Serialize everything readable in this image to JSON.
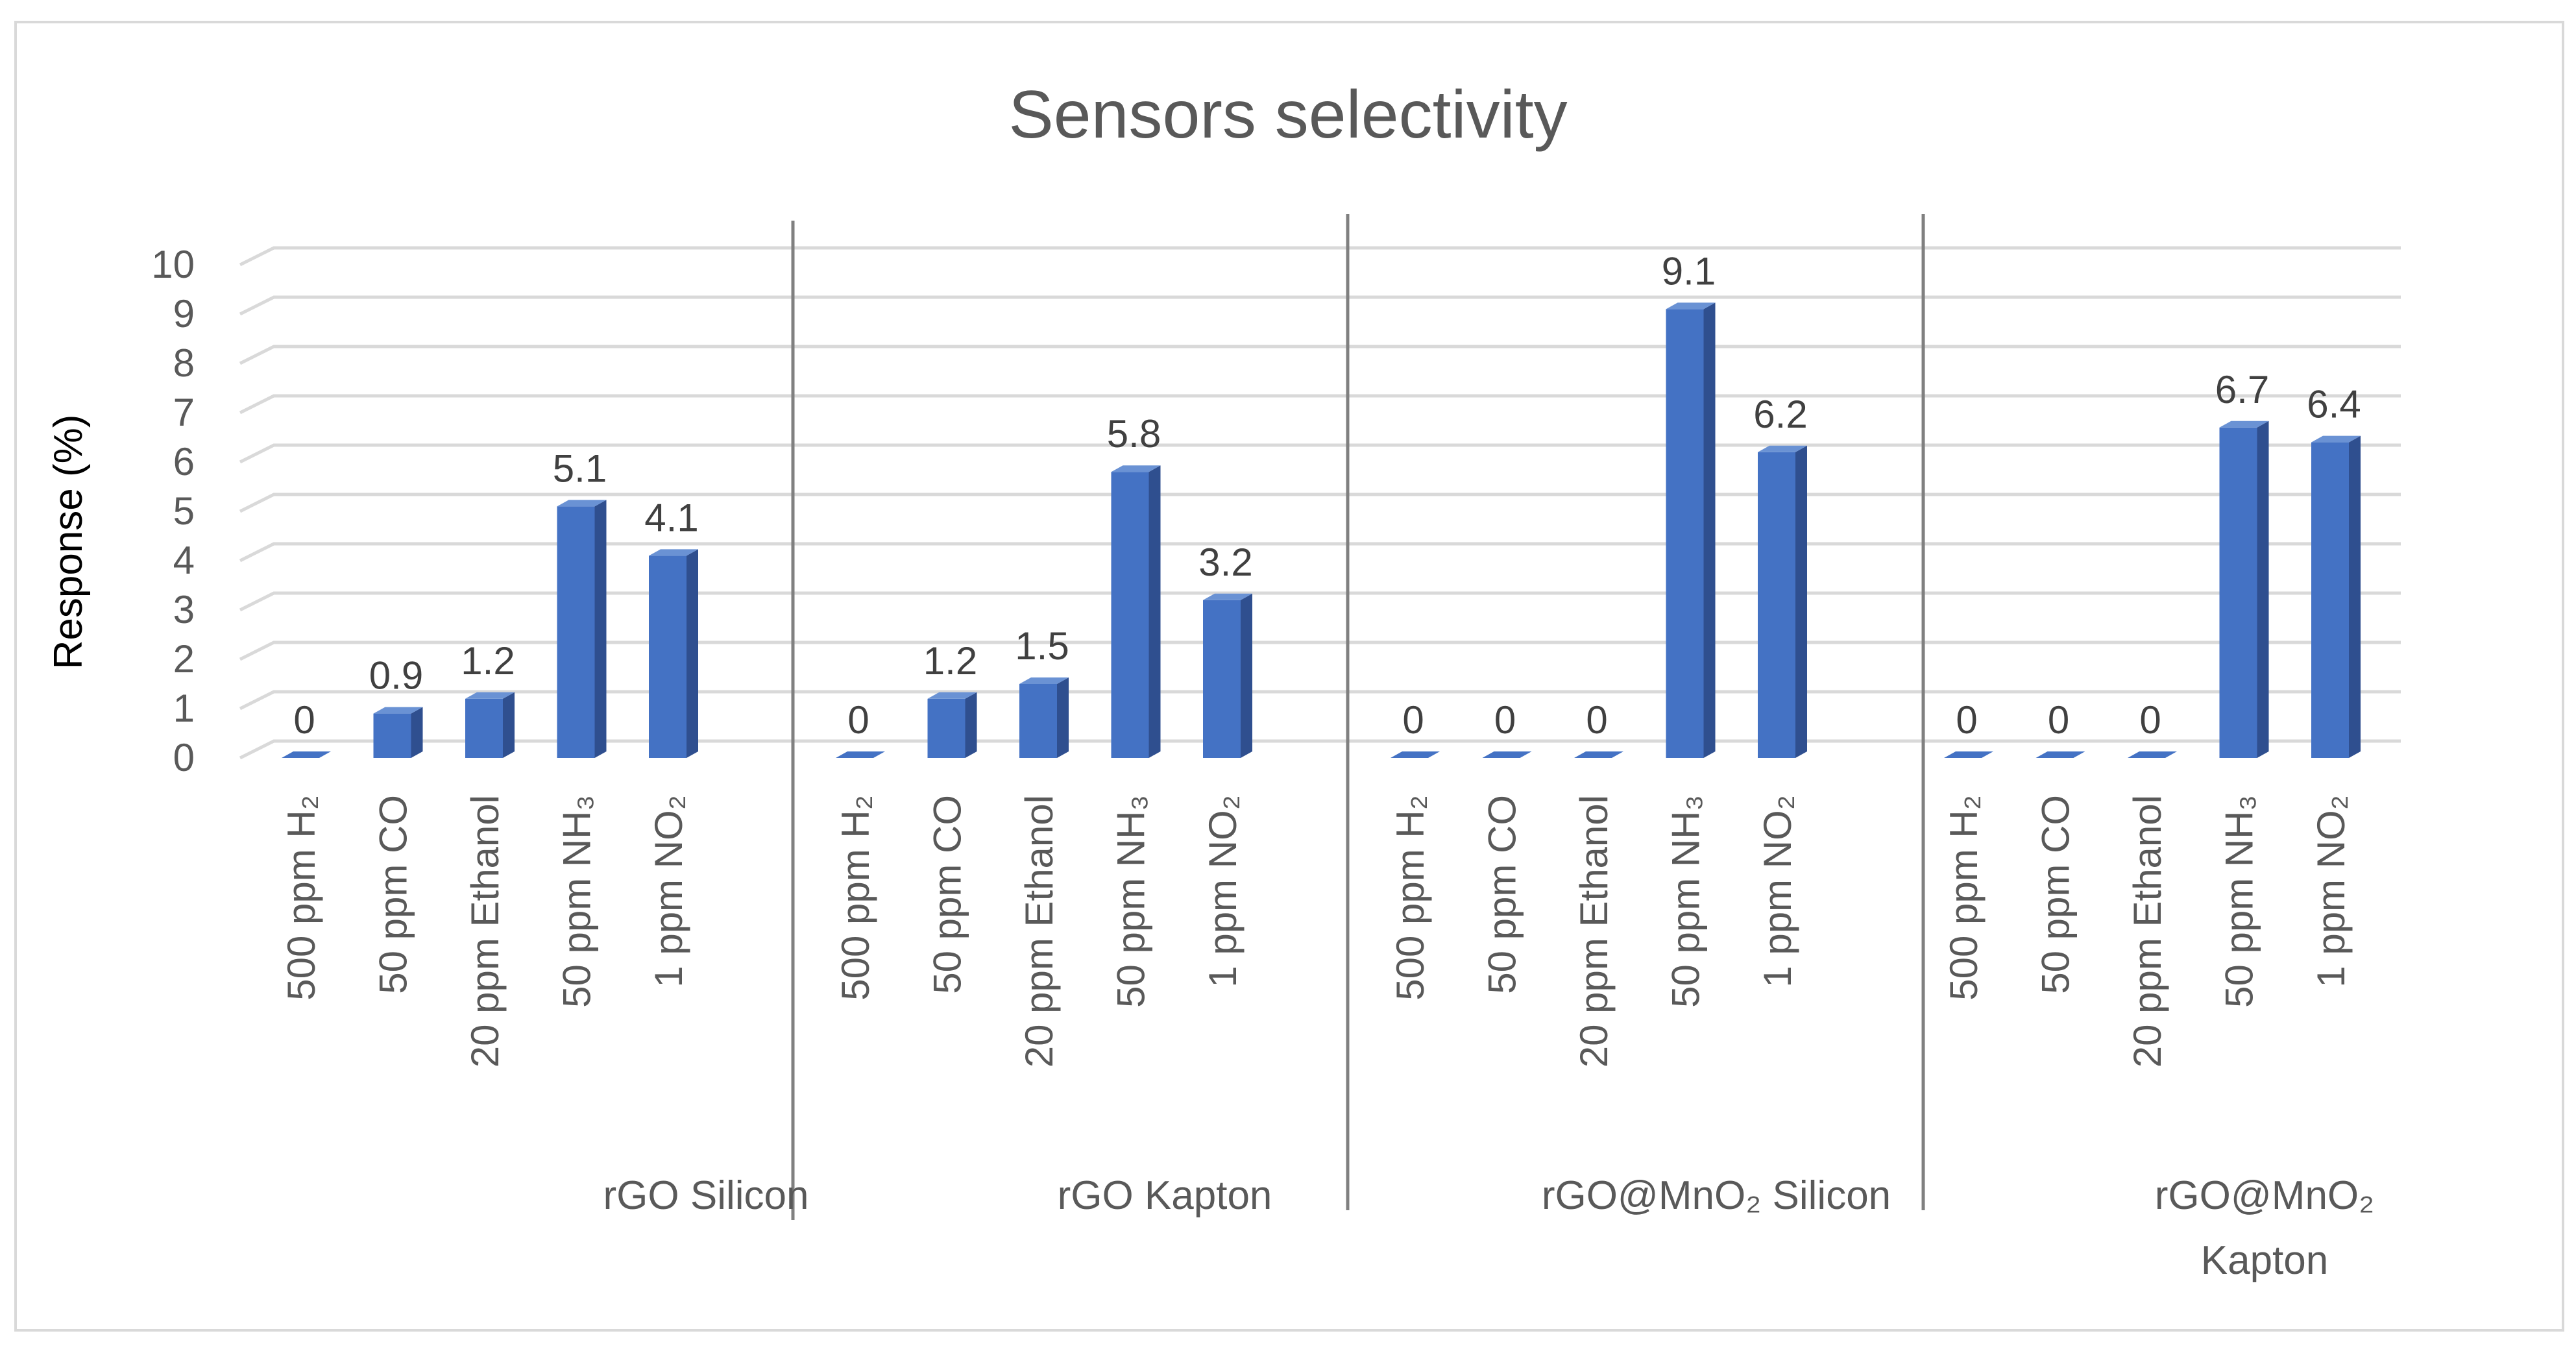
{
  "chart_data": {
    "type": "bar",
    "title": "Sensors selectivity",
    "ylabel": "Response (%)",
    "xlabel": "",
    "ylim": [
      0,
      10
    ],
    "yticks": [
      "0",
      "1",
      "2",
      "3",
      "4",
      "5",
      "6",
      "7",
      "8",
      "9",
      "10"
    ],
    "grid": true,
    "style": "3d-clustered-column",
    "bar_color": "#4472c4",
    "groups": [
      {
        "label_lines": [
          "rGO Silicon"
        ],
        "categories": [
          "500 ppm H₂",
          "50 ppm CO",
          "20 ppm Ethanol",
          "50 ppm NH₃",
          "1 ppm NO₂"
        ],
        "values": [
          0,
          0.9,
          1.2,
          5.1,
          4.1
        ],
        "labels": [
          "0",
          "0.9",
          "1.2",
          "5.1",
          "4.1"
        ]
      },
      {
        "label_lines": [
          "rGO Kapton"
        ],
        "categories": [
          "500 ppm H₂",
          "50 ppm CO",
          "20 ppm Ethanol",
          "50 ppm NH₃",
          "1 ppm NO₂"
        ],
        "values": [
          0,
          1.2,
          1.5,
          5.8,
          3.2
        ],
        "labels": [
          "0",
          "1.2",
          "1.5",
          "5.8",
          "3.2"
        ]
      },
      {
        "label_lines": [
          "rGO@MnO₂ Silicon"
        ],
        "categories": [
          "500 ppm H₂",
          "50 ppm CO",
          "20 ppm Ethanol",
          "50 ppm NH₃",
          "1 ppm NO₂"
        ],
        "values": [
          0,
          0,
          0,
          9.1,
          6.2
        ],
        "labels": [
          "0",
          "0",
          "0",
          "9.1",
          "6.2"
        ]
      },
      {
        "label_lines": [
          "rGO@MnO₂",
          "Kapton"
        ],
        "categories": [
          "500 ppm H₂",
          "50 ppm CO",
          "20 ppm Ethanol",
          "50 ppm NH₃",
          "1 ppm NO₂"
        ],
        "values": [
          0,
          0,
          0,
          6.7,
          6.4
        ],
        "labels": [
          "0",
          "0",
          "0",
          "6.7",
          "6.4"
        ]
      }
    ]
  }
}
